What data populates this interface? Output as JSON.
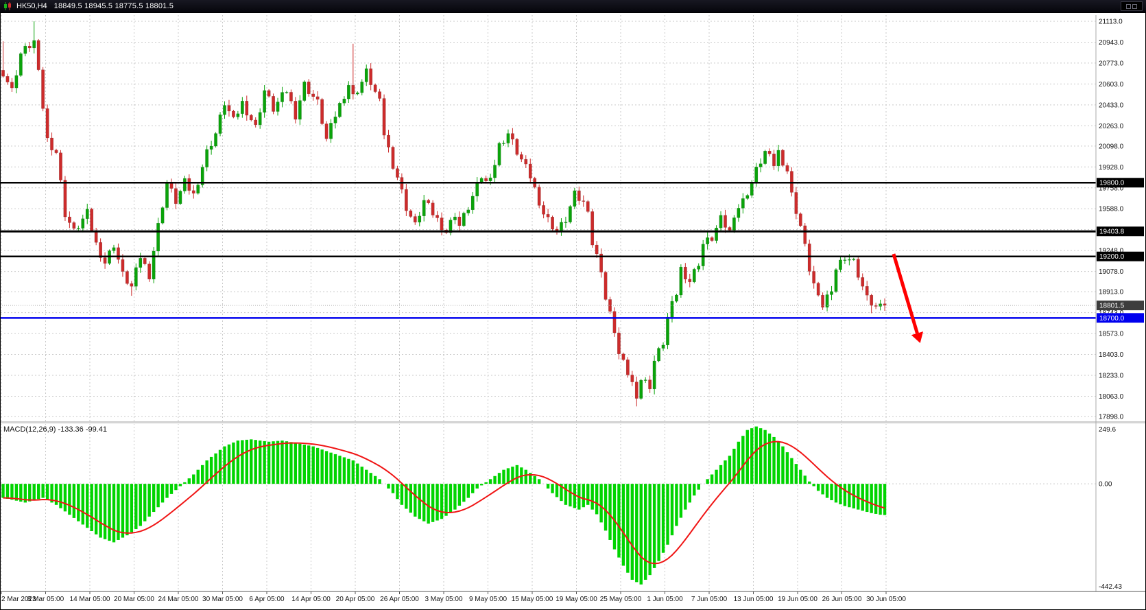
{
  "window": {
    "symbol": "HK50,H4",
    "ohlc": "18849.5 18945.5 18775.5 18801.5"
  },
  "colors": {
    "background": "#ffffff",
    "grid": "#c9c9c9",
    "border": "#000000",
    "axis_text": "#111111",
    "title_bar_bg": "#0c0c12",
    "title_text": "#ffffff"
  },
  "chart_data": {
    "type": "candlestick_with_macd",
    "symbol": "HK50",
    "period": "H4",
    "ohlc_display": {
      "open": 18849.5,
      "high": 18945.5,
      "low": 18775.5,
      "close": 18801.5
    },
    "price_axis": {
      "top_price": 21113.0,
      "bottom_price": 17898.0,
      "ticks": [
        "21113.0",
        "20943.0",
        "20773.0",
        "20603.0",
        "20433.0",
        "20263.0",
        "20098.0",
        "19928.0",
        "19758.0",
        "19588.0",
        "19418.0",
        "19248.0",
        "19078.0",
        "18913.0",
        "18743.0",
        "18573.0",
        "18403.0",
        "18233.0",
        "18063.0",
        "17898.0"
      ]
    },
    "time_axis": {
      "labels": [
        "2 Mar 2023",
        "8 Mar 05:00",
        "14 Mar 05:00",
        "20 Mar 05:00",
        "24 Mar 05:00",
        "30 Mar 05:00",
        "6 Apr 05:00",
        "14 Apr 05:00",
        "20 Apr 05:00",
        "26 Apr 05:00",
        "3 May 05:00",
        "9 May 05:00",
        "15 May 05:00",
        "19 May 05:00",
        "25 May 05:00",
        "1 Jun 05:00",
        "7 Jun 05:00",
        "13 Jun 05:00",
        "19 Jun 05:00",
        "26 Jun 05:00",
        "30 Jun 05:00"
      ]
    },
    "hlines": [
      {
        "price": 19800.0,
        "label": "19800.0",
        "color": "#000000",
        "box_color": "#000000",
        "width": 2.5
      },
      {
        "price": 19403.8,
        "label": "19403.8",
        "color": "#000000",
        "box_color": "#000000",
        "width": 3
      },
      {
        "price": 19200.0,
        "label": "19200.0",
        "color": "#000000",
        "box_color": "#000000",
        "width": 2.5
      },
      {
        "price": 18700.0,
        "label": "18700.0",
        "color": "#0000ee",
        "box_color": "#0000ee",
        "width": 2.5
      }
    ],
    "current_price": {
      "price": 18801.5,
      "label": "18801.5",
      "box_color": "#3d3d3d"
    },
    "candles": {
      "count": 200,
      "up_color": "#0aa30a",
      "down_color": "#cc2b2b",
      "last_close": 18801.5,
      "close_anchors": [
        [
          0,
          20700
        ],
        [
          2,
          20550
        ],
        [
          4,
          20850
        ],
        [
          7,
          20950
        ],
        [
          10,
          20150
        ],
        [
          12,
          20050
        ],
        [
          14,
          19550
        ],
        [
          16,
          19400
        ],
        [
          19,
          19550
        ],
        [
          21,
          19300
        ],
        [
          23,
          19150
        ],
        [
          25,
          19300
        ],
        [
          27,
          19050
        ],
        [
          29,
          18950
        ],
        [
          31,
          19200
        ],
        [
          33,
          19050
        ],
        [
          35,
          19450
        ],
        [
          37,
          19800
        ],
        [
          39,
          19650
        ],
        [
          41,
          19800
        ],
        [
          43,
          19700
        ],
        [
          46,
          20050
        ],
        [
          48,
          20200
        ],
        [
          50,
          20450
        ],
        [
          52,
          20300
        ],
        [
          54,
          20450
        ],
        [
          57,
          20250
        ],
        [
          59,
          20550
        ],
        [
          61,
          20400
        ],
        [
          64,
          20550
        ],
        [
          66,
          20350
        ],
        [
          68,
          20600
        ],
        [
          71,
          20450
        ],
        [
          73,
          20150
        ],
        [
          75,
          20350
        ],
        [
          78,
          20600
        ],
        [
          79,
          20500
        ],
        [
          81,
          20620
        ],
        [
          82,
          20700
        ],
        [
          85,
          20450
        ],
        [
          86,
          20200
        ],
        [
          88,
          19950
        ],
        [
          89,
          19850
        ],
        [
          91,
          19600
        ],
        [
          93,
          19450
        ],
        [
          95,
          19650
        ],
        [
          98,
          19500
        ],
        [
          100,
          19400
        ],
        [
          102,
          19550
        ],
        [
          103,
          19450
        ],
        [
          105,
          19600
        ],
        [
          108,
          19850
        ],
        [
          109,
          19800
        ],
        [
          111,
          19950
        ],
        [
          112,
          20100
        ],
        [
          114,
          20200
        ],
        [
          116,
          20050
        ],
        [
          119,
          19850
        ],
        [
          120,
          19750
        ],
        [
          122,
          19550
        ],
        [
          125,
          19400
        ],
        [
          127,
          19500
        ],
        [
          129,
          19700
        ],
        [
          132,
          19600
        ],
        [
          133,
          19300
        ],
        [
          135,
          19100
        ],
        [
          136,
          18850
        ],
        [
          138,
          18600
        ],
        [
          139,
          18400
        ],
        [
          141,
          18250
        ],
        [
          143,
          18080
        ],
        [
          144,
          18200
        ],
        [
          146,
          18150
        ],
        [
          147,
          18350
        ],
        [
          149,
          18500
        ],
        [
          150,
          18700
        ],
        [
          152,
          18900
        ],
        [
          153,
          19100
        ],
        [
          155,
          19000
        ],
        [
          157,
          19150
        ],
        [
          158,
          19300
        ],
        [
          160,
          19350
        ],
        [
          162,
          19500
        ],
        [
          164,
          19400
        ],
        [
          165,
          19550
        ],
        [
          167,
          19650
        ],
        [
          169,
          19800
        ],
        [
          170,
          19900
        ],
        [
          172,
          20050
        ],
        [
          174,
          19950
        ],
        [
          175,
          20050
        ],
        [
          177,
          19900
        ],
        [
          178,
          19700
        ],
        [
          180,
          19450
        ],
        [
          182,
          19100
        ],
        [
          184,
          18850
        ],
        [
          185,
          18800
        ],
        [
          187,
          18950
        ],
        [
          188,
          19100
        ],
        [
          190,
          19200
        ],
        [
          192,
          19150
        ],
        [
          194,
          18950
        ],
        [
          195,
          18850
        ],
        [
          197,
          18780
        ],
        [
          198,
          18850
        ],
        [
          199,
          18801.5
        ]
      ],
      "wick_specials": [
        {
          "index": 0,
          "high": 20950
        },
        {
          "index": 7,
          "high": 21113.0
        },
        {
          "index": 29,
          "low": 18880
        },
        {
          "index": 79,
          "high": 20930
        },
        {
          "index": 143,
          "low": 17980
        },
        {
          "index": 196,
          "low": 18738
        }
      ]
    },
    "arrow": {
      "from_index": 201,
      "from_price": 19220.0,
      "to_index": 207,
      "to_price": 18495.0,
      "color": "#ff0000"
    },
    "macd": {
      "label": "MACD(12,26,9) -133.36 -99.41",
      "macd_value": -133.36,
      "signal_value": -99.41,
      "scale_max": 249.6,
      "scale_min": -442.43,
      "max_label": "249.6",
      "zero_label": "0.00",
      "min_label": "-442.43",
      "histogram_color": "#00d400",
      "signal_color": "#f01414",
      "anchors": [
        [
          0,
          -60
        ],
        [
          5,
          -80
        ],
        [
          9,
          -60
        ],
        [
          12,
          -90
        ],
        [
          17,
          -160
        ],
        [
          22,
          -230
        ],
        [
          25,
          -250
        ],
        [
          28,
          -220
        ],
        [
          31,
          -180
        ],
        [
          34,
          -120
        ],
        [
          37,
          -60
        ],
        [
          40,
          -10
        ],
        [
          43,
          40
        ],
        [
          46,
          100
        ],
        [
          50,
          160
        ],
        [
          53,
          185
        ],
        [
          56,
          190
        ],
        [
          60,
          180
        ],
        [
          63,
          185
        ],
        [
          66,
          175
        ],
        [
          70,
          160
        ],
        [
          73,
          140
        ],
        [
          76,
          120
        ],
        [
          79,
          100
        ],
        [
          82,
          60
        ],
        [
          85,
          20
        ],
        [
          88,
          -40
        ],
        [
          90,
          -90
        ],
        [
          93,
          -140
        ],
        [
          96,
          -170
        ],
        [
          99,
          -150
        ],
        [
          102,
          -110
        ],
        [
          105,
          -60
        ],
        [
          107,
          -20
        ],
        [
          110,
          20
        ],
        [
          113,
          60
        ],
        [
          116,
          80
        ],
        [
          118,
          60
        ],
        [
          121,
          20
        ],
        [
          124,
          -40
        ],
        [
          127,
          -90
        ],
        [
          130,
          -110
        ],
        [
          132,
          -90
        ],
        [
          134,
          -130
        ],
        [
          136,
          -200
        ],
        [
          138,
          -280
        ],
        [
          140,
          -350
        ],
        [
          142,
          -410
        ],
        [
          144,
          -430
        ],
        [
          146,
          -390
        ],
        [
          148,
          -330
        ],
        [
          150,
          -260
        ],
        [
          152,
          -180
        ],
        [
          154,
          -110
        ],
        [
          156,
          -50
        ],
        [
          158,
          0
        ],
        [
          160,
          40
        ],
        [
          162,
          80
        ],
        [
          164,
          120
        ],
        [
          166,
          180
        ],
        [
          168,
          230
        ],
        [
          170,
          245
        ],
        [
          172,
          230
        ],
        [
          174,
          200
        ],
        [
          176,
          160
        ],
        [
          178,
          110
        ],
        [
          180,
          60
        ],
        [
          182,
          10
        ],
        [
          184,
          -30
        ],
        [
          186,
          -60
        ],
        [
          188,
          -80
        ],
        [
          190,
          -95
        ],
        [
          192,
          -105
        ],
        [
          194,
          -115
        ],
        [
          196,
          -125
        ],
        [
          198,
          -132
        ],
        [
          199,
          -133.36
        ]
      ]
    }
  }
}
